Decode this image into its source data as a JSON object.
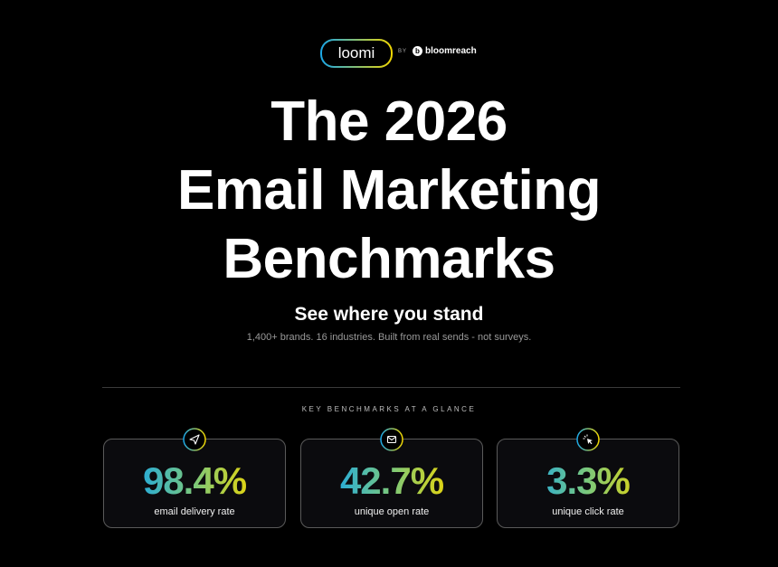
{
  "header": {
    "logo": "loomi",
    "by": "BY",
    "partner": "bloomreach"
  },
  "hero": {
    "title_lines": [
      "The 2026",
      "Email Marketing",
      "Benchmarks"
    ],
    "subtitle": "See where you stand",
    "tagline": "1,400+ brands. 16 industries. Built from real sends - not surveys."
  },
  "section": {
    "label": "KEY BENCHMARKS AT A GLANCE",
    "cards": [
      {
        "value": "98.4%",
        "label": "email delivery rate"
      },
      {
        "value": "42.7%",
        "label": "unique open rate"
      },
      {
        "value": "3.3%",
        "label": "unique click rate"
      }
    ]
  }
}
